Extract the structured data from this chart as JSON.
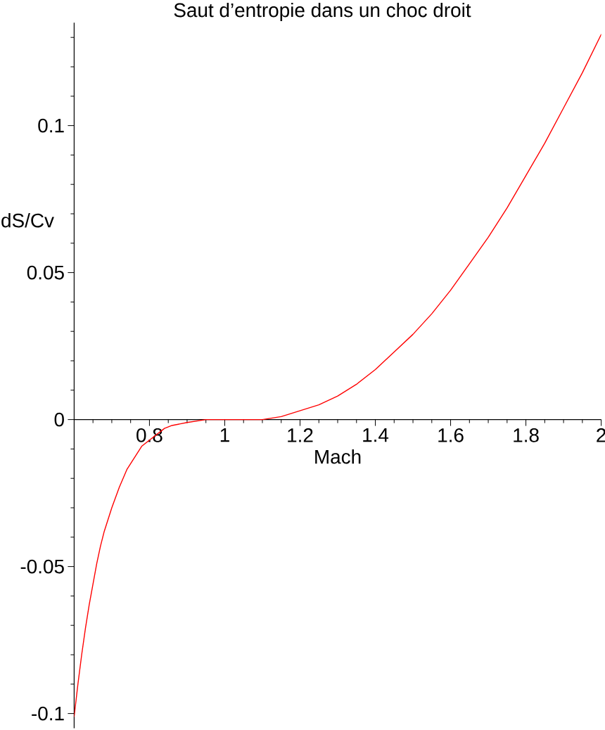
{
  "chart_data": {
    "type": "line",
    "title": "Saut d’entropie dans un choc droit",
    "xlabel": "Mach",
    "ylabel": "dS/Cv",
    "x": [
      0.6,
      0.61,
      0.62,
      0.63,
      0.64,
      0.65,
      0.66,
      0.67,
      0.68,
      0.7,
      0.72,
      0.74,
      0.76,
      0.78,
      0.8,
      0.82,
      0.84,
      0.86,
      0.9,
      0.95,
      1,
      1.05,
      1.1,
      1.15,
      1.2,
      1.25,
      1.3,
      1.35,
      1.4,
      1.45,
      1.5,
      1.55,
      1.6,
      1.65,
      1.7,
      1.75,
      1.8,
      1.85,
      1.9,
      1.95,
      2
    ],
    "values": [
      -0.101,
      -0.09,
      -0.08,
      -0.071,
      -0.063,
      -0.056,
      -0.049,
      -0.043,
      -0.038,
      -0.03,
      -0.023,
      -0.017,
      -0.013,
      -0.009,
      -0.007,
      -0.005,
      -0.003,
      -0.002,
      -0.001,
      0,
      0,
      0,
      0,
      0.001,
      0.003,
      0.005,
      0.008,
      0.012,
      0.017,
      0.023,
      0.029,
      0.036,
      0.044,
      0.053,
      0.062,
      0.072,
      0.083,
      0.094,
      0.106,
      0.118,
      0.131
    ],
    "color": "#ff0000",
    "xlim": [
      0.6,
      2
    ],
    "ylim": [
      -0.105,
      0.135
    ],
    "xticks": [
      {
        "value": 0.65,
        "label": null
      },
      {
        "value": 0.7,
        "label": null
      },
      {
        "value": 0.75,
        "label": null
      },
      0.8,
      {
        "value": 0.85,
        "label": null
      },
      {
        "value": 0.9,
        "label": null
      },
      {
        "value": 0.95,
        "label": null
      },
      1,
      {
        "value": 1.05,
        "label": null
      },
      {
        "value": 1.1,
        "label": null
      },
      {
        "value": 1.15,
        "label": null
      },
      1.2,
      {
        "value": 1.25,
        "label": null
      },
      {
        "value": 1.3,
        "label": null
      },
      {
        "value": 1.35,
        "label": null
      },
      1.4,
      {
        "value": 1.45,
        "label": null
      },
      {
        "value": 1.5,
        "label": null
      },
      {
        "value": 1.55,
        "label": null
      },
      1.6,
      {
        "value": 1.65,
        "label": null
      },
      {
        "value": 1.7,
        "label": null
      },
      {
        "value": 1.75,
        "label": null
      },
      1.8,
      {
        "value": 1.85,
        "label": null
      },
      {
        "value": 1.9,
        "label": null
      },
      {
        "value": 1.95,
        "label": null
      },
      2
    ],
    "yticks": [
      -0.1,
      {
        "value": -0.09,
        "label": null
      },
      {
        "value": -0.08,
        "label": null
      },
      {
        "value": -0.07,
        "label": null
      },
      {
        "value": -0.06,
        "label": null
      },
      -0.05,
      {
        "value": -0.04,
        "label": null
      },
      {
        "value": -0.03,
        "label": null
      },
      {
        "value": -0.02,
        "label": null
      },
      {
        "value": -0.01,
        "label": null
      },
      0,
      {
        "value": 0.01,
        "label": null
      },
      {
        "value": 0.02,
        "label": null
      },
      {
        "value": 0.03,
        "label": null
      },
      {
        "value": 0.04,
        "label": null
      },
      0.05,
      {
        "value": 0.06,
        "label": null
      },
      {
        "value": 0.07,
        "label": null
      },
      {
        "value": 0.08,
        "label": null
      },
      {
        "value": 0.09,
        "label": null
      },
      0.1,
      {
        "value": 0.11,
        "label": null
      },
      {
        "value": 0.12,
        "label": null
      },
      {
        "value": 0.13,
        "label": null
      }
    ]
  }
}
